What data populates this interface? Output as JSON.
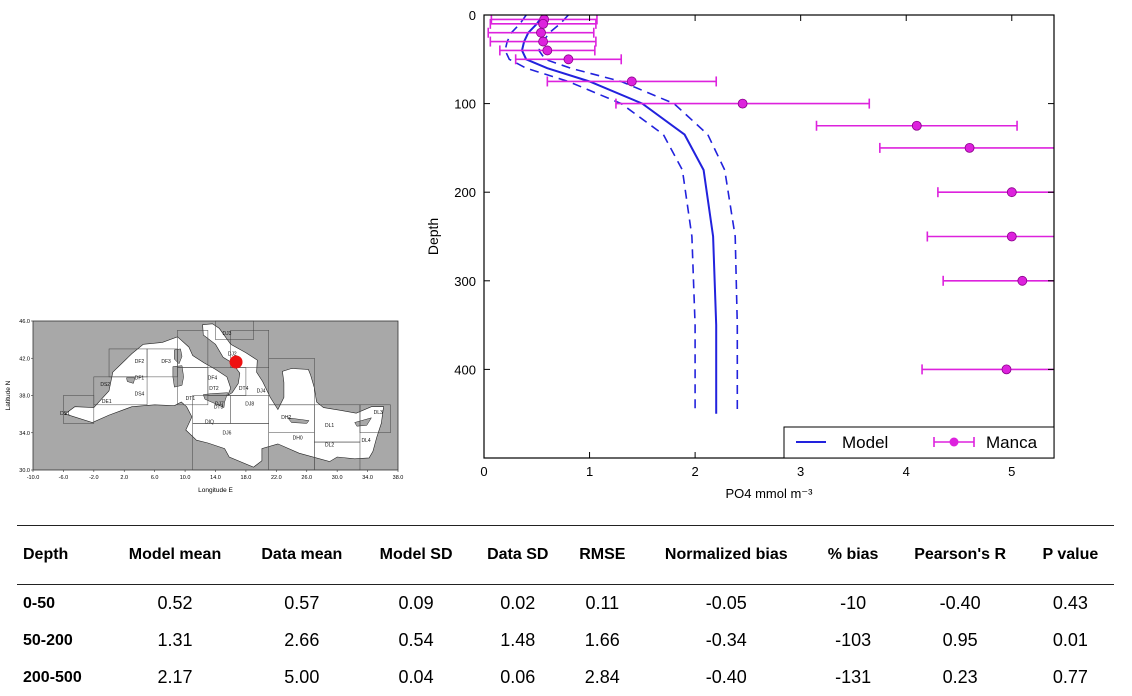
{
  "map": {
    "y_label": "Latitude N",
    "x_label": "Longitude E",
    "lat_ticks": [
      "46.0",
      "42.0",
      "38.0",
      "34.0",
      "30.0"
    ],
    "lon_ticks": [
      "-10.0",
      "-6.0",
      "-2.0",
      "2.0",
      "6.0",
      "10.0",
      "14.0",
      "18.0",
      "22.0",
      "26.0",
      "30.0",
      "34.0",
      "38.0"
    ],
    "regions": [
      {
        "label": "DF2",
        "lon": 4.0,
        "lat": 41.5
      },
      {
        "label": "DF3",
        "lon": 7.5,
        "lat": 41.5
      },
      {
        "label": "DF1",
        "lon": 4.0,
        "lat": 39.7
      },
      {
        "label": "DF4",
        "lon": 13.6,
        "lat": 39.7
      },
      {
        "label": "DS2",
        "lon": -0.5,
        "lat": 39.0
      },
      {
        "label": "DE1",
        "lon": -0.3,
        "lat": 37.2
      },
      {
        "label": "DS4",
        "lon": 4.0,
        "lat": 38.0
      },
      {
        "label": "DS1",
        "lon": -5.8,
        "lat": 35.9
      },
      {
        "label": "DT1",
        "lon": 10.7,
        "lat": 37.5
      },
      {
        "label": "DT2",
        "lon": 13.8,
        "lat": 38.6
      },
      {
        "label": "DT3",
        "lon": 14.4,
        "lat": 36.6
      },
      {
        "label": "DT4",
        "lon": 17.7,
        "lat": 38.6
      },
      {
        "label": "DJ7",
        "lon": 14.5,
        "lat": 36.9
      },
      {
        "label": "DJ8",
        "lon": 18.5,
        "lat": 36.9
      },
      {
        "label": "DIQ",
        "lon": 13.2,
        "lat": 35.0
      },
      {
        "label": "DJ6",
        "lon": 15.5,
        "lat": 33.8
      },
      {
        "label": "DJ4",
        "lon": 20.0,
        "lat": 38.3
      },
      {
        "label": "DH2",
        "lon": 23.3,
        "lat": 35.5
      },
      {
        "label": "DH0",
        "lon": 24.8,
        "lat": 33.3
      },
      {
        "label": "DL1",
        "lon": 29.0,
        "lat": 34.6
      },
      {
        "label": "DL2",
        "lon": 29.0,
        "lat": 32.5
      },
      {
        "label": "DL4",
        "lon": 33.8,
        "lat": 33.0
      },
      {
        "label": "DL3",
        "lon": 35.4,
        "lat": 36.0
      },
      {
        "label": "DJ3",
        "lon": 15.5,
        "lat": 44.5
      },
      {
        "label": "DJ2",
        "lon": 16.2,
        "lat": 42.3
      }
    ],
    "marker": {
      "lon": 16.7,
      "lat": 41.6,
      "color": "#ee1111"
    },
    "colors": {
      "sea": "#ffffff",
      "land": "#a8a8a8"
    }
  },
  "chart_data": {
    "type": "line",
    "xlabel": "PO4 mmol m⁻³",
    "ylabel": "Depth",
    "xlim": [
      0,
      5.4
    ],
    "ylim": [
      500,
      0
    ],
    "x_ticks": [
      "0",
      "1",
      "2",
      "3",
      "4",
      "5"
    ],
    "y_ticks": [
      "0",
      "100",
      "200",
      "300",
      "400"
    ],
    "legend_position": "bottom-right",
    "series": [
      {
        "name": "Model",
        "color": "#2222dd",
        "depth": [
          0,
          10,
          20,
          30,
          40,
          50,
          60,
          75,
          100,
          135,
          175,
          250,
          350,
          450
        ],
        "mean": [
          0.56,
          0.5,
          0.42,
          0.38,
          0.36,
          0.4,
          0.6,
          1.0,
          1.5,
          1.9,
          2.08,
          2.17,
          2.2,
          2.2
        ],
        "upper": [
          0.8,
          0.72,
          0.62,
          0.56,
          0.52,
          0.58,
          0.82,
          1.3,
          1.8,
          2.12,
          2.28,
          2.38,
          2.4,
          2.4
        ],
        "lower": [
          0.4,
          0.34,
          0.26,
          0.22,
          0.2,
          0.24,
          0.4,
          0.8,
          1.3,
          1.7,
          1.88,
          1.97,
          2.0,
          2.0
        ]
      },
      {
        "name": "Manca",
        "color": "#dd22dd",
        "points": [
          {
            "depth": 5,
            "value": 0.57,
            "xerr": 0.5
          },
          {
            "depth": 10,
            "value": 0.56,
            "xerr": 0.5
          },
          {
            "depth": 20,
            "value": 0.54,
            "xerr": 0.5
          },
          {
            "depth": 30,
            "value": 0.56,
            "xerr": 0.5
          },
          {
            "depth": 40,
            "value": 0.6,
            "xerr": 0.45
          },
          {
            "depth": 50,
            "value": 0.8,
            "xerr": 0.5
          },
          {
            "depth": 75,
            "value": 1.4,
            "xerr": 0.8
          },
          {
            "depth": 100,
            "value": 2.45,
            "xerr": 1.2
          },
          {
            "depth": 125,
            "value": 4.1,
            "xerr": 0.95
          },
          {
            "depth": 150,
            "value": 4.6,
            "xerr": 0.85
          },
          {
            "depth": 200,
            "value": 5.0,
            "xerr": 0.7
          },
          {
            "depth": 250,
            "value": 5.0,
            "xerr": 0.8
          },
          {
            "depth": 300,
            "value": 5.1,
            "xerr": 0.75
          },
          {
            "depth": 400,
            "value": 4.95,
            "xerr": 0.8
          }
        ]
      }
    ]
  },
  "table": {
    "headers": [
      "Depth",
      "Model mean",
      "Data mean",
      "Model SD",
      "Data SD",
      "RMSE",
      "Normalized bias",
      "% bias",
      "Pearson's R",
      "P value"
    ],
    "rows": [
      [
        "0-50",
        "0.52",
        "0.57",
        "0.09",
        "0.02",
        "0.11",
        "-0.05",
        "-10",
        "-0.40",
        "0.43"
      ],
      [
        "50-200",
        "1.31",
        "2.66",
        "0.54",
        "1.48",
        "1.66",
        "-0.34",
        "-103",
        "0.95",
        "0.01"
      ],
      [
        "200-500",
        "2.17",
        "5.00",
        "0.04",
        "0.06",
        "2.84",
        "-0.40",
        "-131",
        "0.23",
        "0.77"
      ]
    ]
  }
}
